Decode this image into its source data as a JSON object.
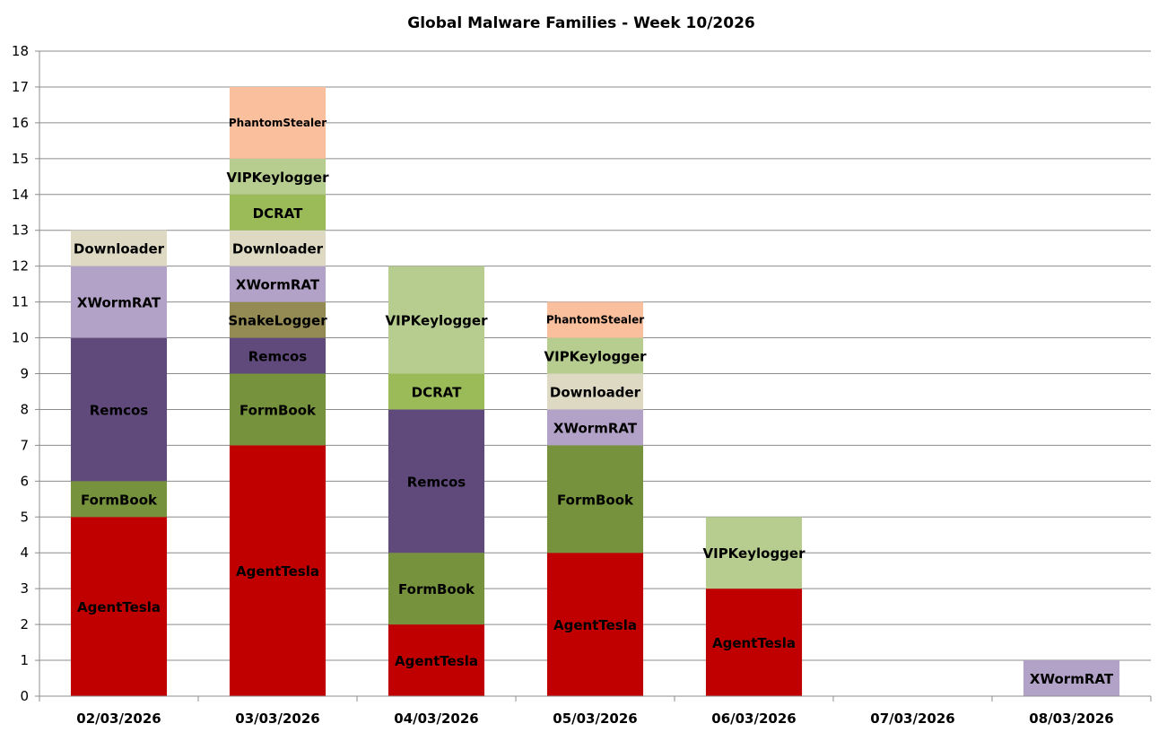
{
  "chart_data": {
    "type": "bar",
    "stacked": true,
    "title": "Global Malware Families - Week 10/2026",
    "xlabel": "",
    "ylabel": "",
    "ylim": [
      0,
      18
    ],
    "yticks": [
      0,
      1,
      2,
      3,
      4,
      5,
      6,
      7,
      8,
      9,
      10,
      11,
      12,
      13,
      14,
      15,
      16,
      17,
      18
    ],
    "grid": true,
    "legend": "none",
    "categories": [
      "02/03/2026",
      "03/03/2026",
      "04/03/2026",
      "05/03/2026",
      "06/03/2026",
      "07/03/2026",
      "08/03/2026"
    ],
    "colors": {
      "AgentTesla": "#c00000",
      "FormBook": "#76923c",
      "Remcos": "#604a7b",
      "SnakeLogger": "#948a54",
      "XWormRAT": "#b3a2c7",
      "Downloader": "#ddd9c3",
      "DCRAT": "#9bbb59",
      "VIPKeylogger": "#b7cc8f",
      "PhantomStealer": "#fac09e"
    },
    "stacks": [
      [
        {
          "name": "AgentTesla",
          "value": 5
        },
        {
          "name": "FormBook",
          "value": 1
        },
        {
          "name": "Remcos",
          "value": 4
        },
        {
          "name": "XWormRAT",
          "value": 2
        },
        {
          "name": "Downloader",
          "value": 1
        }
      ],
      [
        {
          "name": "AgentTesla",
          "value": 7
        },
        {
          "name": "FormBook",
          "value": 2
        },
        {
          "name": "Remcos",
          "value": 1
        },
        {
          "name": "SnakeLogger",
          "value": 1
        },
        {
          "name": "XWormRAT",
          "value": 1
        },
        {
          "name": "Downloader",
          "value": 1
        },
        {
          "name": "DCRAT",
          "value": 1
        },
        {
          "name": "VIPKeylogger",
          "value": 1
        },
        {
          "name": "PhantomStealer",
          "value": 2
        }
      ],
      [
        {
          "name": "AgentTesla",
          "value": 2
        },
        {
          "name": "FormBook",
          "value": 2
        },
        {
          "name": "Remcos",
          "value": 4
        },
        {
          "name": "DCRAT",
          "value": 1
        },
        {
          "name": "VIPKeylogger",
          "value": 3
        }
      ],
      [
        {
          "name": "AgentTesla",
          "value": 4
        },
        {
          "name": "FormBook",
          "value": 3
        },
        {
          "name": "XWormRAT",
          "value": 1
        },
        {
          "name": "Downloader",
          "value": 1
        },
        {
          "name": "VIPKeylogger",
          "value": 1
        },
        {
          "name": "PhantomStealer",
          "value": 1
        }
      ],
      [
        {
          "name": "AgentTesla",
          "value": 3
        },
        {
          "name": "VIPKeylogger",
          "value": 2
        }
      ],
      [],
      [
        {
          "name": "XWormRAT",
          "value": 1
        }
      ]
    ]
  }
}
